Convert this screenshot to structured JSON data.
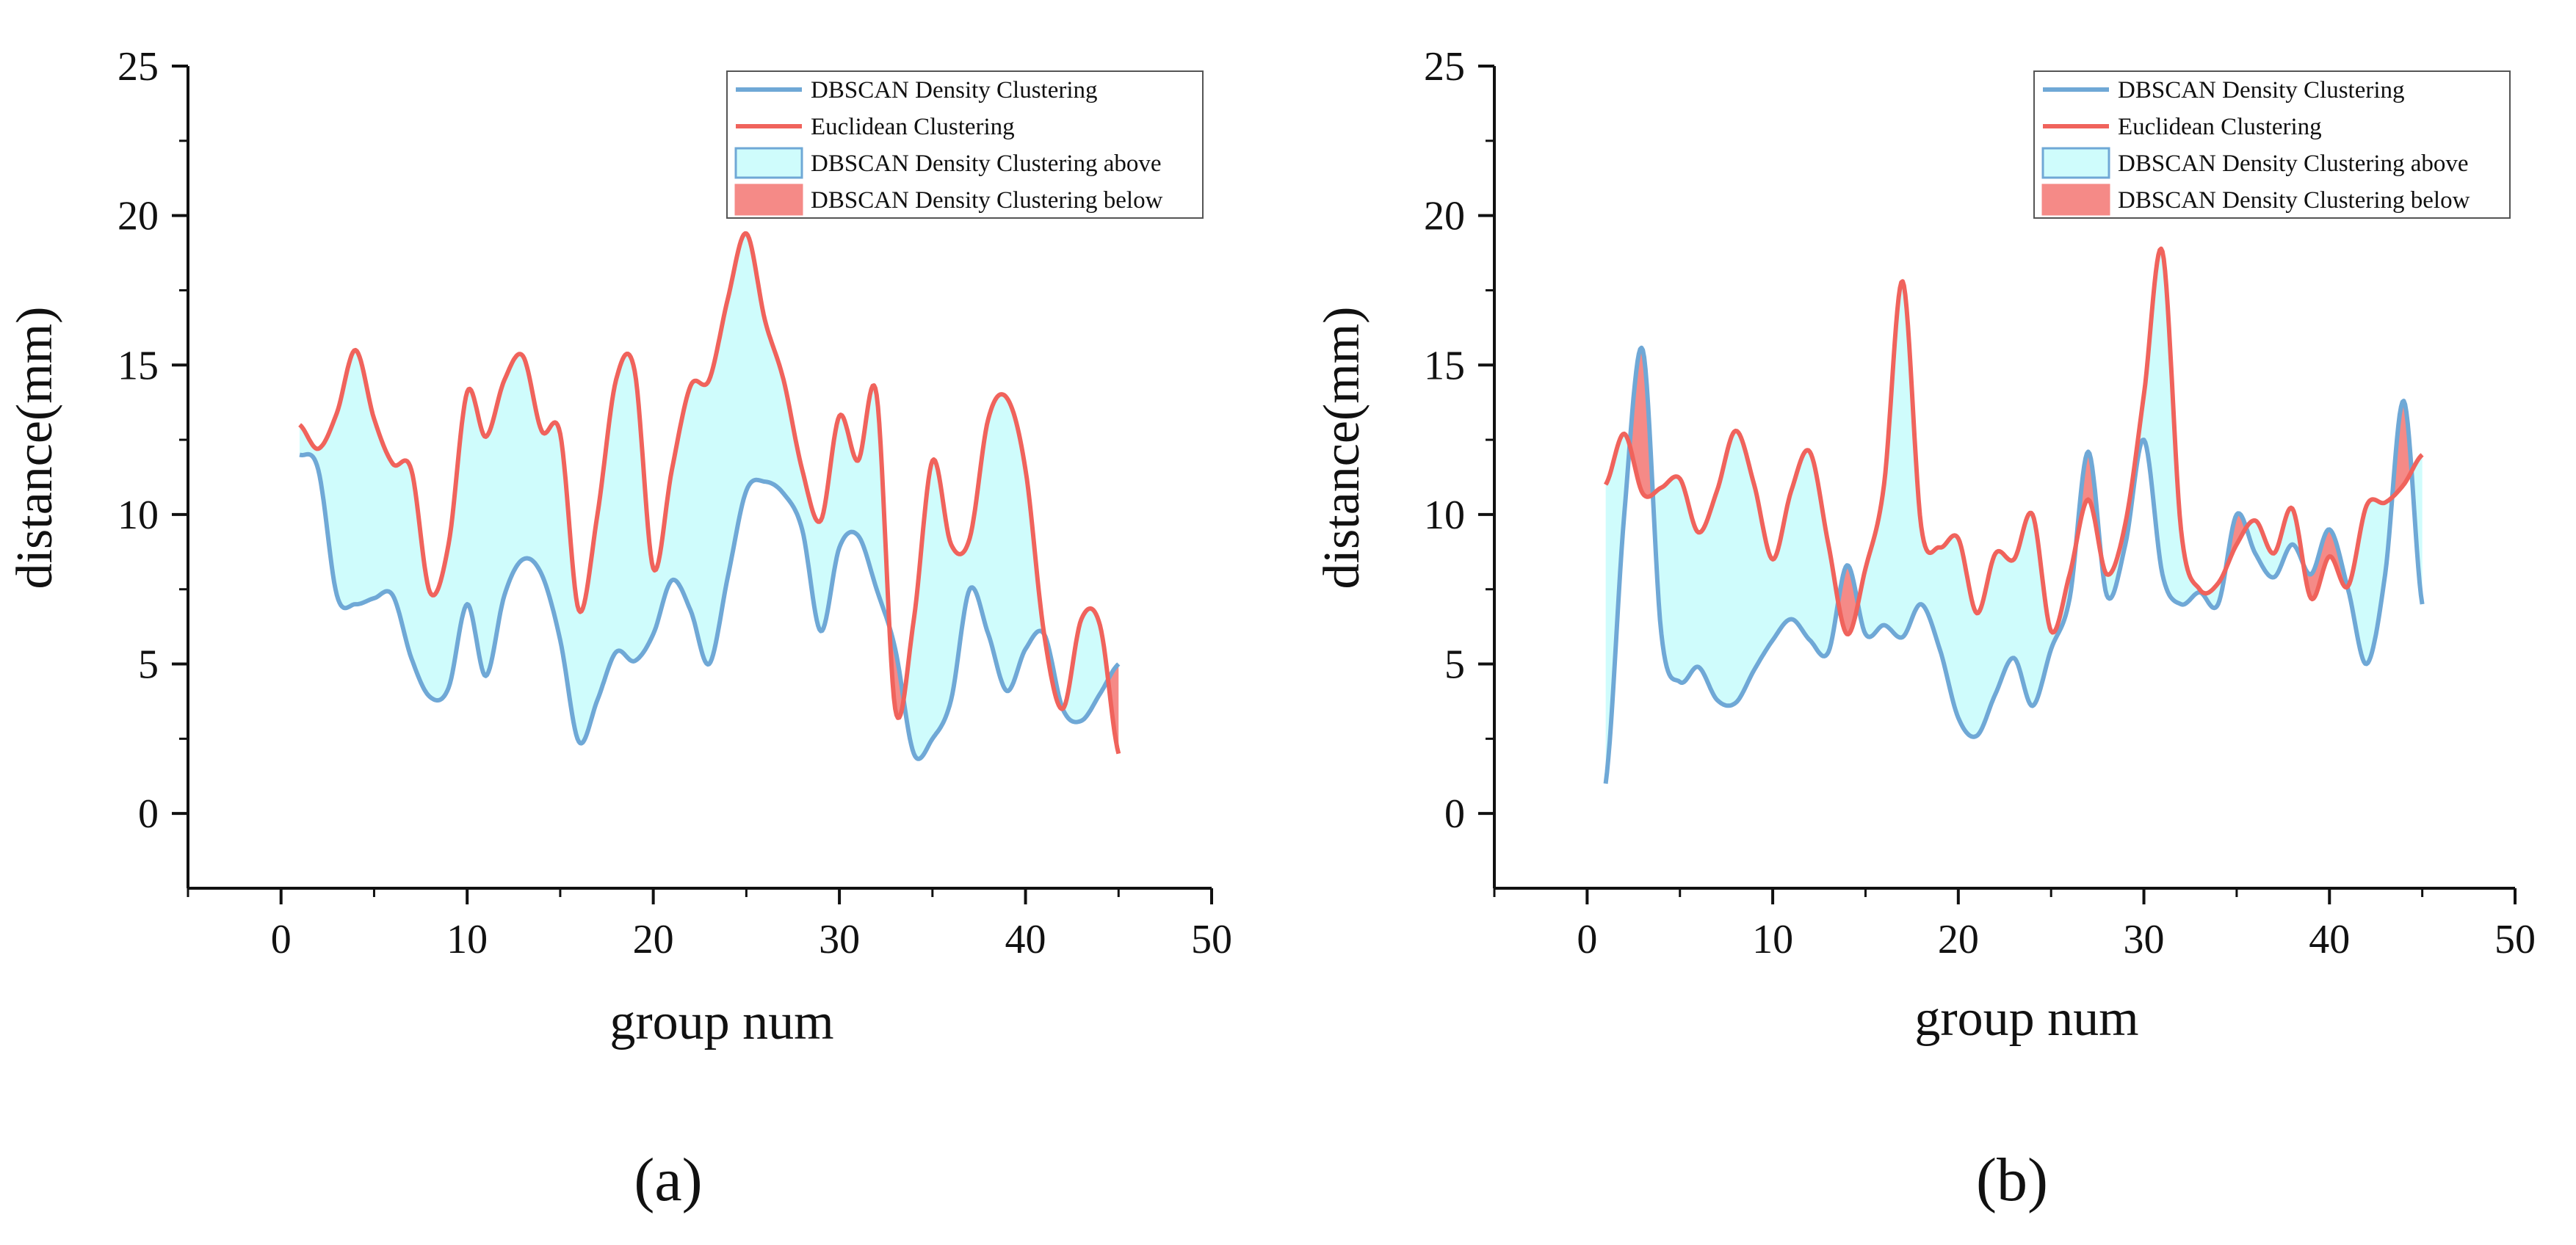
{
  "colors": {
    "dbscan_line": "#6fa8d6",
    "euclid_line": "#f0635c",
    "fill_above": "#cffcfc",
    "fill_below": "#f58a87",
    "axis": "#111111"
  },
  "chart_data": [
    {
      "type": "line",
      "panel_label": "(a)",
      "xlabel": "group num",
      "ylabel": "distance(mm)",
      "xlim": [
        -5,
        50
      ],
      "ylim": [
        -2.5,
        25
      ],
      "xticks": [
        "0",
        "10",
        "20",
        "30",
        "40",
        "50"
      ],
      "yticks": [
        "0",
        "5",
        "10",
        "15",
        "20",
        "25"
      ],
      "legend_position": "top-right",
      "legend": [
        "DBSCAN Density Clustering",
        "Euclidean Clustering",
        "DBSCAN Density Clustering above",
        "DBSCAN Density Clustering below"
      ],
      "x": [
        1,
        2,
        3,
        4,
        5,
        6,
        7,
        8,
        9,
        10,
        11,
        12,
        13,
        14,
        15,
        16,
        17,
        18,
        19,
        20,
        21,
        22,
        23,
        24,
        25,
        26,
        27,
        28,
        29,
        30,
        31,
        32,
        33,
        34,
        35,
        36,
        37,
        38,
        39,
        40,
        41,
        42,
        43,
        44,
        45
      ],
      "series": [
        {
          "name": "DBSCAN Density Clustering",
          "values": [
            12,
            11.5,
            7.3,
            7,
            7.2,
            7.3,
            5.2,
            3.9,
            4.2,
            7,
            4.6,
            7.3,
            8.5,
            8,
            5.8,
            2.4,
            3.8,
            5.4,
            5.1,
            6,
            7.8,
            6.8,
            5,
            7.9,
            10.8,
            11.1,
            10.7,
            9.5,
            6.1,
            8.9,
            9.3,
            7.5,
            5.5,
            2,
            2.5,
            3.8,
            7.5,
            6,
            4.1,
            5.5,
            6,
            3.5,
            3.1,
            4,
            5
          ]
        },
        {
          "name": "Euclidean Clustering",
          "values": [
            13,
            12.2,
            13.4,
            15.5,
            13.2,
            11.7,
            11.5,
            7.4,
            9,
            14.1,
            12.6,
            14.5,
            15.3,
            12.8,
            12.7,
            6.8,
            10,
            14.5,
            14.8,
            8.2,
            11.5,
            14.3,
            14.5,
            17.2,
            19.4,
            16.5,
            14.5,
            11.5,
            9.8,
            13.3,
            11.8,
            14,
            3.5,
            6.5,
            11.8,
            9,
            9.2,
            13.2,
            13.9,
            11.5,
            6,
            3.5,
            6.5,
            6.3,
            2
          ]
        }
      ]
    },
    {
      "type": "line",
      "panel_label": "(b)",
      "xlabel": "group num",
      "ylabel": "distance(mm)",
      "xlim": [
        -5,
        50
      ],
      "ylim": [
        -2.5,
        25
      ],
      "xticks": [
        "0",
        "10",
        "20",
        "30",
        "40",
        "50"
      ],
      "yticks": [
        "0",
        "5",
        "10",
        "15",
        "20",
        "25"
      ],
      "legend_position": "top-right",
      "legend": [
        "DBSCAN Density Clustering",
        "Euclidean Clustering",
        "DBSCAN Density Clustering above",
        "DBSCAN Density Clustering below"
      ],
      "x": [
        1,
        2,
        3,
        4,
        5,
        6,
        7,
        8,
        9,
        10,
        11,
        12,
        13,
        14,
        15,
        16,
        17,
        18,
        19,
        20,
        21,
        22,
        23,
        24,
        25,
        26,
        27,
        28,
        29,
        30,
        31,
        32,
        33,
        34,
        35,
        36,
        37,
        38,
        39,
        40,
        41,
        42,
        43,
        44,
        45
      ],
      "series": [
        {
          "name": "DBSCAN Density Clustering",
          "values": [
            1,
            10,
            15.5,
            6,
            4.4,
            4.9,
            3.8,
            3.7,
            4.8,
            5.8,
            6.5,
            5.8,
            5.4,
            8.3,
            6,
            6.3,
            5.9,
            7,
            5.5,
            3.2,
            2.6,
            4,
            5.2,
            3.6,
            5.5,
            7.2,
            12.1,
            7.3,
            9,
            12.5,
            8,
            7,
            7.4,
            7,
            10,
            8.7,
            7.9,
            9,
            8,
            9.5,
            7.5,
            5,
            8,
            13.8,
            7
          ]
        },
        {
          "name": "Euclidean Clustering",
          "values": [
            11,
            12.7,
            10.7,
            10.9,
            11.2,
            9.4,
            10.8,
            12.8,
            11,
            8.5,
            10.8,
            12.1,
            9,
            6,
            8.2,
            11,
            17.8,
            9.6,
            8.9,
            9.2,
            6.7,
            8.7,
            8.5,
            10,
            6.1,
            8,
            10.5,
            8,
            9.7,
            14,
            18.8,
            9.5,
            7.5,
            7.7,
            9,
            9.8,
            8.7,
            10.2,
            7.2,
            8.6,
            7.6,
            10.3,
            10.4,
            11,
            12
          ]
        }
      ]
    }
  ]
}
